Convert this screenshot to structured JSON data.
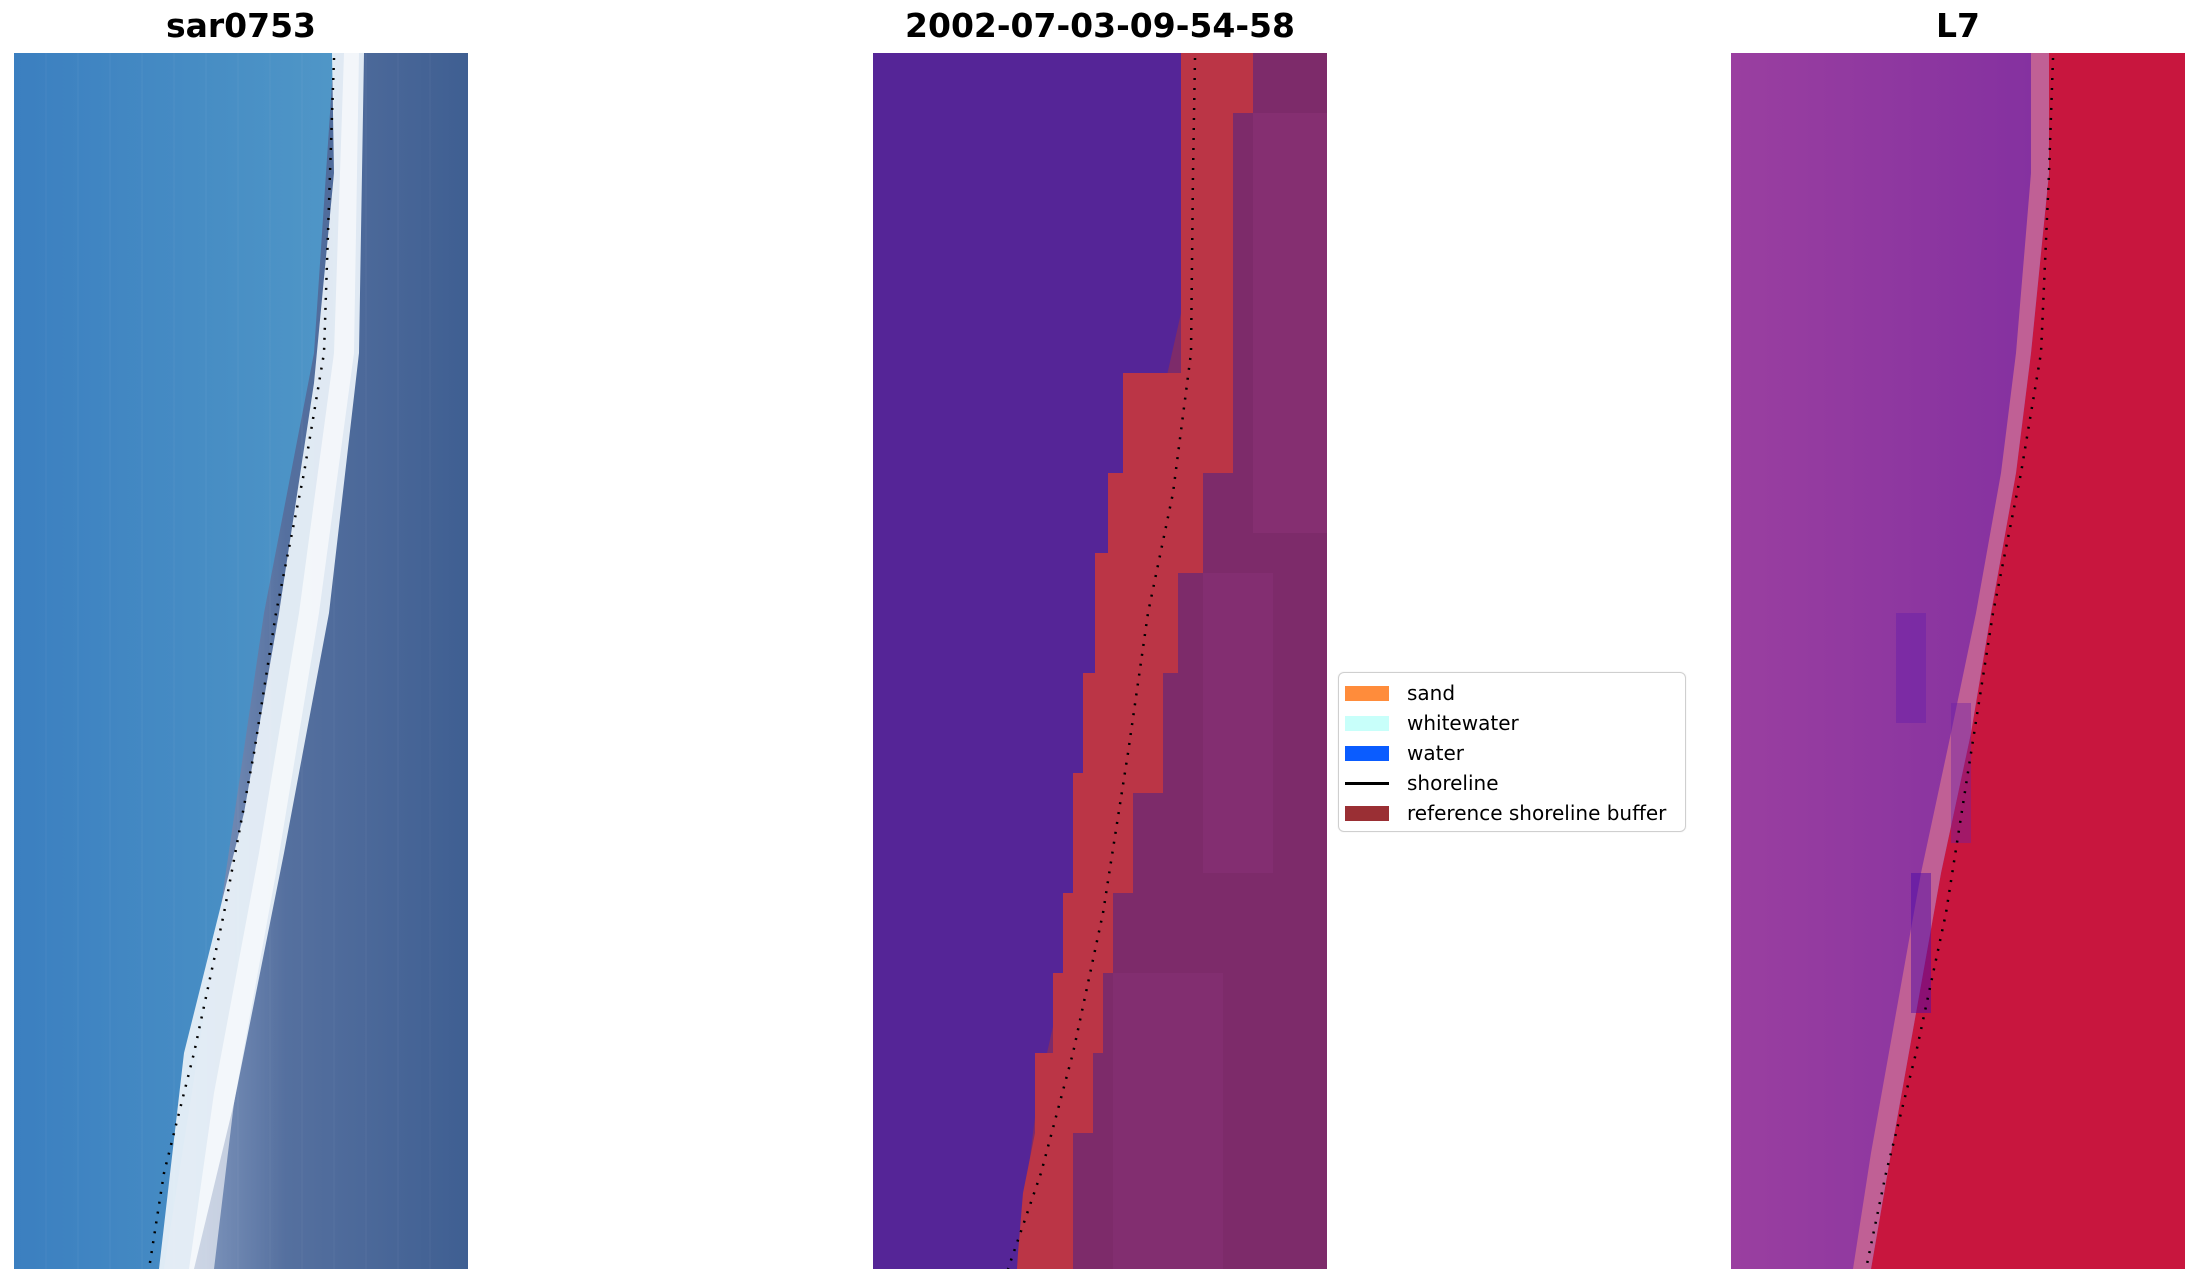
{
  "panels": [
    {
      "title": "sar0753"
    },
    {
      "title": "2002-07-03-09-54-58"
    },
    {
      "title": "L7"
    }
  ],
  "legend": {
    "items": [
      {
        "label": "sand",
        "kind": "patch",
        "color": "#ff8c3b"
      },
      {
        "label": "whitewater",
        "kind": "patch",
        "color": "#c8fffa"
      },
      {
        "label": "water",
        "kind": "patch",
        "color": "#0a5cff"
      },
      {
        "label": "shoreline",
        "kind": "line",
        "color": "#000000"
      },
      {
        "label": "reference shoreline buffer",
        "kind": "patch",
        "color": "#9a2f34"
      }
    ]
  },
  "colors": {
    "rgb_water": "#3d85c0",
    "rgb_whitewater": "#f0f6ff",
    "rgb_land": "#4a6a9a",
    "class_background": "#552597",
    "class_buffer": "#bb3546",
    "class_land": "#7d2b6a",
    "mndwi_water": "#8a3a9e",
    "mndwi_land": "#c8163e"
  }
}
